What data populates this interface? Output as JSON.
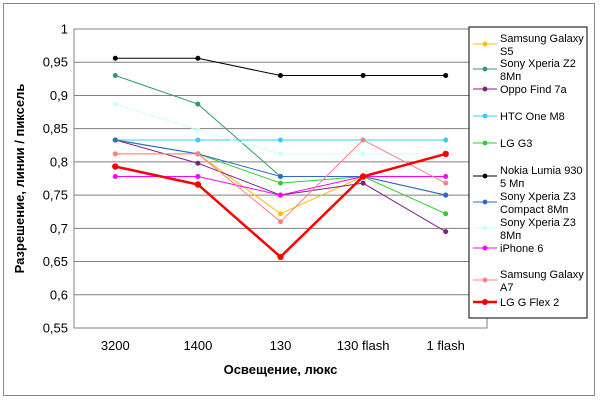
{
  "chart_data": {
    "type": "line",
    "title": "",
    "xlabel": "Освещение, люкс",
    "ylabel": "Разрешение, линии / пиксель",
    "categories": [
      "3200",
      "1400",
      "130",
      "130 flash",
      "1 flash"
    ],
    "ylim": [
      0.55,
      1
    ],
    "yticks": [
      "0,55",
      "0,6",
      "0,65",
      "0,7",
      "0,75",
      "0,8",
      "0,85",
      "0,9",
      "0,95",
      "1"
    ],
    "grid": "horizontal",
    "legend_position": "right",
    "series": [
      {
        "name": [
          "Samsung Galaxy",
          "S5"
        ],
        "color": "#ffc000",
        "width": 1,
        "values": [
          0.812,
          0.812,
          0.722,
          0.778,
          0.75
        ]
      },
      {
        "name": [
          "Sony Xperia Z2",
          "8Мп"
        ],
        "color": "#339966",
        "width": 1,
        "values": [
          0.93,
          0.887,
          0.778,
          0.778,
          0.75
        ]
      },
      {
        "name": [
          "Oppo Find 7a"
        ],
        "color": "#7f1f7f",
        "width": 1,
        "values": [
          0.833,
          0.798,
          0.75,
          0.768,
          0.695
        ]
      },
      {
        "name": [
          "HTC One M8"
        ],
        "color": "#33ccff",
        "width": 1,
        "values": [
          0.833,
          0.833,
          0.833,
          0.833,
          0.833
        ]
      },
      {
        "name": [
          "LG G3"
        ],
        "color": "#33cc33",
        "width": 1,
        "values": [
          0.833,
          0.812,
          0.768,
          0.778,
          0.722
        ]
      },
      {
        "name": [
          "Nokia Lumia 930",
          "5 Мп"
        ],
        "color": "#000000",
        "width": 1,
        "values": [
          0.956,
          0.956,
          0.93,
          0.93,
          0.93
        ]
      },
      {
        "name": [
          "Sony Xperia Z3",
          "Compact 8Мп"
        ],
        "color": "#3366cc",
        "width": 1,
        "values": [
          0.833,
          0.812,
          0.778,
          0.778,
          0.75
        ]
      },
      {
        "name": [
          "Sony Xperia Z3",
          "8Мп"
        ],
        "color": "#ccffff",
        "width": 1,
        "values": [
          0.887,
          0.848,
          0.812,
          0.812,
          0.812
        ]
      },
      {
        "name": [
          "iPhone 6"
        ],
        "color": "#ff00ff",
        "width": 1,
        "values": [
          0.778,
          0.778,
          0.75,
          0.778,
          0.778
        ]
      },
      {
        "name": [
          "Samsung Galaxy",
          "A7"
        ],
        "color": "#ff8080",
        "width": 1,
        "values": [
          0.812,
          0.812,
          0.71,
          0.833,
          0.768
        ]
      },
      {
        "name": [
          "LG G Flex 2"
        ],
        "color": "#ff0000",
        "width": 2.5,
        "values": [
          0.793,
          0.766,
          0.657,
          0.778,
          0.812
        ]
      }
    ]
  }
}
